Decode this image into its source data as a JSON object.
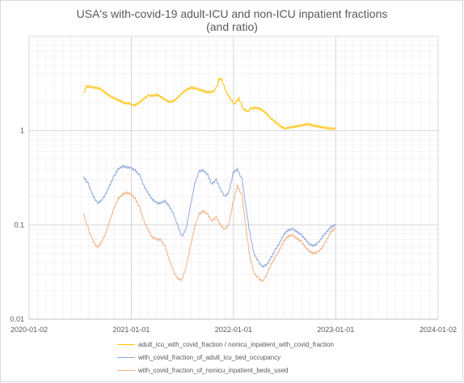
{
  "chart_title": {
    "line1": "USA's with-covid-19 adult-ICU and non-ICU inpatient fractions",
    "line2": "(and ratio)"
  },
  "chart_data": {
    "type": "line",
    "title": "USA's with-covid-19 adult-ICU and non-ICU inpatient fractions (and ratio)",
    "xlabel": "",
    "ylabel": "",
    "x_axis": {
      "type": "date",
      "range": [
        "2020-01-02",
        "2024-01-02"
      ],
      "tick_labels": [
        "2020-01-02",
        "2021-01-01",
        "2022-01-01",
        "2023-01-01",
        "2024-01-02"
      ]
    },
    "y_axis": {
      "scale": "log",
      "range": [
        0.01,
        10
      ],
      "tick_labels": [
        "0.01",
        "0.1",
        "1"
      ]
    },
    "grid": true,
    "legend_position": "bottom",
    "series": [
      {
        "name": "adult_icu_with_covid_fraction / nonicu_inpatient_with_covid_fraction",
        "color": "#ffc000",
        "x": [
          "2020-07-15",
          "2020-07-25",
          "2020-08-10",
          "2020-08-25",
          "2020-09-10",
          "2020-09-25",
          "2020-10-10",
          "2020-10-25",
          "2020-11-10",
          "2020-11-25",
          "2020-12-10",
          "2020-12-25",
          "2021-01-05",
          "2021-01-20",
          "2021-02-05",
          "2021-02-20",
          "2021-03-05",
          "2021-03-20",
          "2021-04-05",
          "2021-04-20",
          "2021-05-05",
          "2021-05-20",
          "2021-06-05",
          "2021-06-20",
          "2021-07-05",
          "2021-07-20",
          "2021-08-05",
          "2021-08-20",
          "2021-09-05",
          "2021-09-20",
          "2021-10-05",
          "2021-10-20",
          "2021-11-01",
          "2021-11-10",
          "2021-11-20",
          "2021-12-05",
          "2021-12-20",
          "2022-01-05",
          "2022-01-20",
          "2022-02-05",
          "2022-02-20",
          "2022-03-05",
          "2022-03-20",
          "2022-04-05",
          "2022-04-20",
          "2022-05-05",
          "2022-05-20",
          "2022-06-05",
          "2022-06-20",
          "2022-07-05",
          "2022-07-20",
          "2022-08-05",
          "2022-08-20",
          "2022-09-05",
          "2022-09-20",
          "2022-10-05",
          "2022-10-20",
          "2022-11-05",
          "2022-11-20",
          "2022-12-05",
          "2022-12-20",
          "2023-01-01"
        ],
        "values": [
          2.5,
          2.95,
          2.9,
          2.85,
          2.8,
          2.6,
          2.4,
          2.25,
          2.15,
          2.05,
          1.95,
          1.95,
          1.85,
          1.9,
          2.05,
          2.25,
          2.35,
          2.35,
          2.4,
          2.25,
          2.1,
          2.0,
          2.1,
          2.3,
          2.55,
          2.75,
          2.85,
          2.8,
          2.7,
          2.6,
          2.55,
          2.6,
          2.8,
          3.5,
          3.5,
          2.6,
          2.2,
          1.9,
          2.2,
          1.7,
          1.6,
          1.7,
          1.75,
          1.7,
          1.6,
          1.45,
          1.3,
          1.2,
          1.1,
          1.05,
          1.08,
          1.1,
          1.12,
          1.14,
          1.17,
          1.15,
          1.12,
          1.1,
          1.08,
          1.06,
          1.05,
          1.04
        ]
      },
      {
        "name": "with_covid_fraction_of_adult_icu_bed_occupancy",
        "color": "#8faadc",
        "x": [
          "2020-07-15",
          "2020-08-01",
          "2020-08-15",
          "2020-09-01",
          "2020-09-15",
          "2020-10-01",
          "2020-10-15",
          "2020-11-01",
          "2020-11-15",
          "2020-12-01",
          "2020-12-15",
          "2021-01-01",
          "2021-01-15",
          "2021-02-01",
          "2021-02-15",
          "2021-03-01",
          "2021-03-15",
          "2021-04-01",
          "2021-04-15",
          "2021-05-01",
          "2021-05-15",
          "2021-06-01",
          "2021-06-15",
          "2021-07-01",
          "2021-07-15",
          "2021-08-01",
          "2021-08-15",
          "2021-09-01",
          "2021-09-15",
          "2021-10-01",
          "2021-10-15",
          "2021-11-01",
          "2021-11-15",
          "2021-12-01",
          "2021-12-15",
          "2022-01-01",
          "2022-01-15",
          "2022-02-01",
          "2022-02-15",
          "2022-03-01",
          "2022-03-15",
          "2022-04-01",
          "2022-04-15",
          "2022-05-01",
          "2022-05-15",
          "2022-06-01",
          "2022-06-15",
          "2022-07-01",
          "2022-07-15",
          "2022-08-01",
          "2022-08-15",
          "2022-09-01",
          "2022-09-15",
          "2022-10-01",
          "2022-10-15",
          "2022-11-01",
          "2022-11-15",
          "2022-12-01",
          "2022-12-15",
          "2023-01-01"
        ],
        "values": [
          0.32,
          0.27,
          0.21,
          0.17,
          0.18,
          0.21,
          0.26,
          0.33,
          0.39,
          0.42,
          0.41,
          0.4,
          0.38,
          0.33,
          0.26,
          0.22,
          0.19,
          0.17,
          0.17,
          0.18,
          0.16,
          0.13,
          0.1,
          0.075,
          0.09,
          0.16,
          0.27,
          0.37,
          0.38,
          0.34,
          0.27,
          0.3,
          0.24,
          0.2,
          0.22,
          0.36,
          0.39,
          0.3,
          0.15,
          0.08,
          0.05,
          0.04,
          0.036,
          0.038,
          0.045,
          0.055,
          0.065,
          0.08,
          0.088,
          0.09,
          0.085,
          0.078,
          0.07,
          0.062,
          0.06,
          0.065,
          0.075,
          0.085,
          0.095,
          0.1
        ]
      },
      {
        "name": "with_covid_fraction_of_nonicu_inpatient_beds_used",
        "color": "#f4b183",
        "x": [
          "2020-07-15",
          "2020-08-01",
          "2020-08-15",
          "2020-09-01",
          "2020-09-15",
          "2020-10-01",
          "2020-10-15",
          "2020-11-01",
          "2020-11-15",
          "2020-12-01",
          "2020-12-15",
          "2021-01-01",
          "2021-01-15",
          "2021-02-01",
          "2021-02-15",
          "2021-03-01",
          "2021-03-15",
          "2021-04-01",
          "2021-04-15",
          "2021-05-01",
          "2021-05-15",
          "2021-06-01",
          "2021-06-15",
          "2021-07-01",
          "2021-07-15",
          "2021-08-01",
          "2021-08-15",
          "2021-09-01",
          "2021-09-15",
          "2021-10-01",
          "2021-10-15",
          "2021-11-01",
          "2021-11-15",
          "2021-12-01",
          "2021-12-15",
          "2022-01-01",
          "2022-01-15",
          "2022-02-01",
          "2022-02-15",
          "2022-03-01",
          "2022-03-15",
          "2022-04-01",
          "2022-04-15",
          "2022-05-01",
          "2022-05-15",
          "2022-06-01",
          "2022-06-15",
          "2022-07-01",
          "2022-07-15",
          "2022-08-01",
          "2022-08-15",
          "2022-09-01",
          "2022-09-15",
          "2022-10-01",
          "2022-10-15",
          "2022-11-01",
          "2022-11-15",
          "2022-12-01",
          "2022-12-15",
          "2023-01-01"
        ],
        "values": [
          0.13,
          0.09,
          0.07,
          0.057,
          0.065,
          0.08,
          0.11,
          0.15,
          0.19,
          0.21,
          0.22,
          0.21,
          0.19,
          0.15,
          0.11,
          0.09,
          0.075,
          0.07,
          0.07,
          0.06,
          0.045,
          0.032,
          0.027,
          0.026,
          0.035,
          0.06,
          0.095,
          0.13,
          0.14,
          0.13,
          0.11,
          0.12,
          0.1,
          0.09,
          0.1,
          0.18,
          0.26,
          0.2,
          0.09,
          0.045,
          0.031,
          0.027,
          0.025,
          0.03,
          0.038,
          0.046,
          0.055,
          0.068,
          0.076,
          0.078,
          0.072,
          0.066,
          0.058,
          0.052,
          0.05,
          0.052,
          0.058,
          0.07,
          0.085,
          0.092
        ]
      }
    ]
  }
}
